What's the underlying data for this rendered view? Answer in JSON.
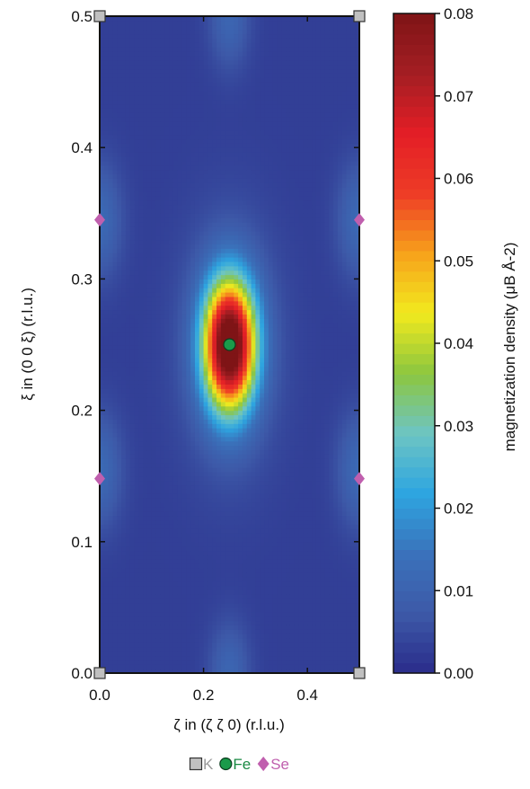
{
  "chart_data": {
    "type": "heatmap",
    "title": "",
    "xlabel": "ζ in (ζ ζ 0) (r.l.u.)",
    "ylabel": "ξ in (0 0 ξ) (r.l.u.)",
    "xlim": [
      0.0,
      0.5
    ],
    "ylim": [
      0.0,
      0.5
    ],
    "x_ticks": [
      {
        "value": 0.0,
        "label": "0.0"
      },
      {
        "value": 0.2,
        "label": "0.2"
      },
      {
        "value": 0.4,
        "label": "0.4"
      }
    ],
    "y_ticks": [
      {
        "value": 0.0,
        "label": "0.0"
      },
      {
        "value": 0.1,
        "label": "0.1"
      },
      {
        "value": 0.2,
        "label": "0.2"
      },
      {
        "value": 0.3,
        "label": "0.3"
      },
      {
        "value": 0.4,
        "label": "0.4"
      },
      {
        "value": 0.5,
        "label": "0.5"
      }
    ],
    "colorbar": {
      "label": "magnetization density (μB Å-2)",
      "min": 0.0,
      "max": 0.08,
      "ticks": [
        {
          "value": 0.0,
          "label": "0.00"
        },
        {
          "value": 0.01,
          "label": "0.01"
        },
        {
          "value": 0.02,
          "label": "0.02"
        },
        {
          "value": 0.03,
          "label": "0.03"
        },
        {
          "value": 0.04,
          "label": "0.04"
        },
        {
          "value": 0.05,
          "label": "0.05"
        },
        {
          "value": 0.06,
          "label": "0.06"
        },
        {
          "value": 0.07,
          "label": "0.07"
        },
        {
          "value": 0.08,
          "label": "0.08"
        }
      ],
      "colors": [
        "#2a2c8a",
        "#3d59a8",
        "#3a72bb",
        "#2ea5e0",
        "#6dc5c3",
        "#8cc63f",
        "#f1ea1e",
        "#f7a21b",
        "#ee3c26",
        "#e31e26",
        "#a41e23",
        "#7f1416"
      ]
    },
    "field": {
      "background": 0.003,
      "peaks": [
        {
          "x": 0.25,
          "y": 0.25,
          "amplitude": 0.08,
          "width": 0.05
        },
        {
          "x": 0.25,
          "y": 0.25,
          "amplitude": 0.01,
          "width": 0.09
        }
      ],
      "lobes": [
        {
          "x": 0.0,
          "y": 0.345,
          "amplitude": 0.009,
          "width": 0.045
        },
        {
          "x": 0.5,
          "y": 0.345,
          "amplitude": 0.009,
          "width": 0.045
        },
        {
          "x": 0.0,
          "y": 0.155,
          "amplitude": 0.009,
          "width": 0.045
        },
        {
          "x": 0.5,
          "y": 0.155,
          "amplitude": 0.009,
          "width": 0.045
        },
        {
          "x": 0.25,
          "y": 0.5,
          "amplitude": 0.008,
          "width": 0.04
        },
        {
          "x": 0.25,
          "y": 0.0,
          "amplitude": 0.008,
          "width": 0.04
        }
      ]
    },
    "atoms": [
      {
        "element": "K",
        "x": 0.0,
        "y": 0.0
      },
      {
        "element": "K",
        "x": 0.5,
        "y": 0.0
      },
      {
        "element": "K",
        "x": 0.0,
        "y": 0.5
      },
      {
        "element": "K",
        "x": 0.5,
        "y": 0.5
      },
      {
        "element": "Fe",
        "x": 0.25,
        "y": 0.25
      },
      {
        "element": "Se",
        "x": 0.0,
        "y": 0.345
      },
      {
        "element": "Se",
        "x": 0.5,
        "y": 0.345
      },
      {
        "element": "Se",
        "x": 0.0,
        "y": 0.148
      },
      {
        "element": "Se",
        "x": 0.5,
        "y": 0.148
      }
    ],
    "legend": {
      "placement": "bottom-center",
      "entries": [
        {
          "element": "K",
          "label": "K",
          "marker": "square",
          "color": "#c0c0c0",
          "text_color": "#9a9a9a"
        },
        {
          "element": "Fe",
          "label": "Fe",
          "marker": "circle",
          "color": "#1a9a4a",
          "text_color": "#1a8a43"
        },
        {
          "element": "Se",
          "label": "Se",
          "marker": "diamond",
          "color": "#c05fae",
          "text_color": "#c05fae"
        }
      ]
    }
  }
}
